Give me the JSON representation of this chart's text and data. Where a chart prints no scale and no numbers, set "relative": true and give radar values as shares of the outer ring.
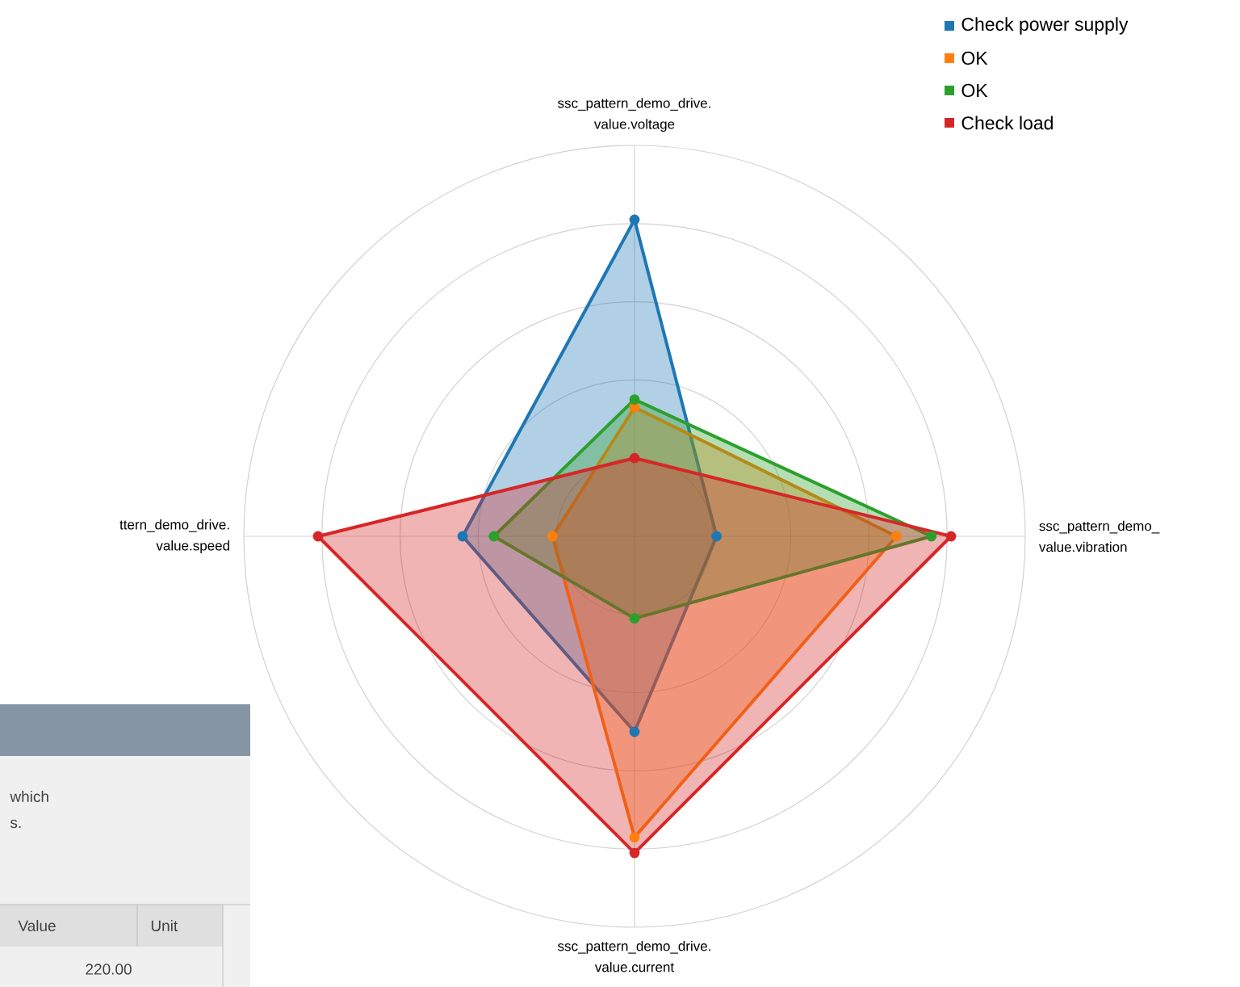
{
  "chart_data": {
    "type": "radar",
    "relative": true,
    "grid": true,
    "legend": "top right",
    "marker": "circle",
    "categories": [
      "ssc_pattern_demo_drive. value.voltage",
      "ssc_pattern_demo_ value.vibration",
      "ssc_pattern_demo_drive. value.current",
      "ttern_demo_drive. value.speed"
    ],
    "series": [
      {
        "name": "Check power supply",
        "color": "#1f77b4",
        "values": [
          0.81,
          0.21,
          0.5,
          0.44
        ]
      },
      {
        "name": "OK",
        "color": "#ff7f0e",
        "values": [
          0.33,
          0.67,
          0.77,
          0.21
        ]
      },
      {
        "name": "OK",
        "color": "#2ca02c",
        "values": [
          0.35,
          0.76,
          0.21,
          0.36
        ]
      },
      {
        "name": "Check load",
        "color": "#d62728",
        "values": [
          0.2,
          0.81,
          0.81,
          0.81
        ]
      }
    ],
    "annotations": [
      "which",
      "s.",
      "Value",
      "Unit",
      "220.00"
    ]
  }
}
